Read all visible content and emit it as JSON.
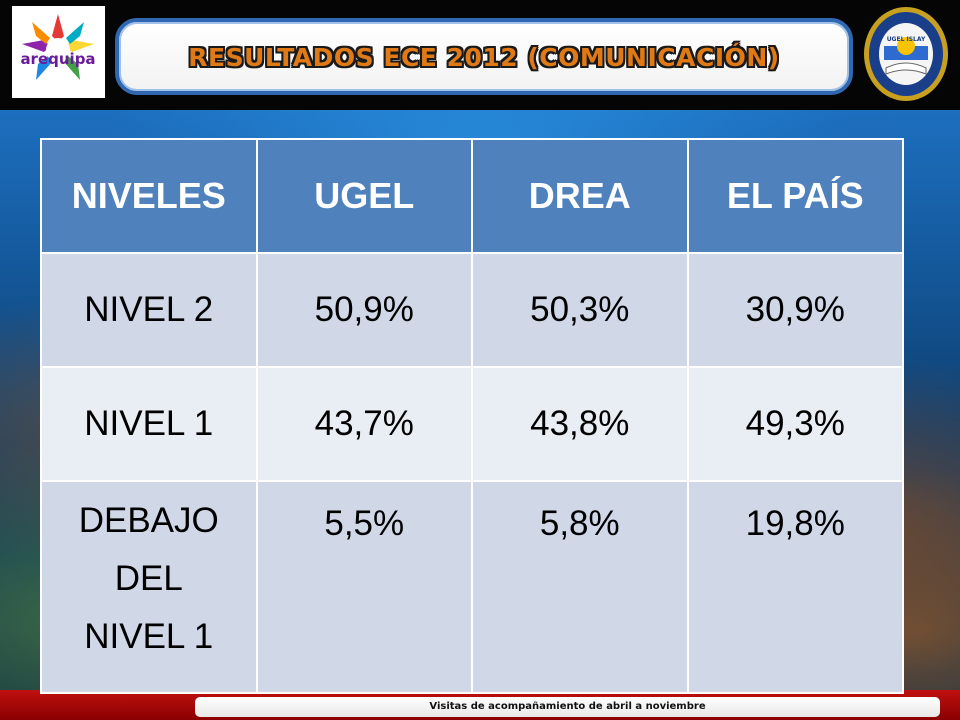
{
  "header": {
    "title": "RESULTADOS ECE 2012 (COMUNICACIÓN)",
    "left_logo_text": "arequipa",
    "right_seal_text": "UGEL ISLAY"
  },
  "table": {
    "columns": [
      "NIVELES",
      "UGEL",
      "DREA",
      "EL PAÍS"
    ],
    "rows": [
      {
        "label": "NIVEL 2",
        "values": [
          "50,9%",
          "50,3%",
          "30,9%"
        ]
      },
      {
        "label": "NIVEL 1",
        "values": [
          "43,7%",
          "43,8%",
          "49,3%"
        ]
      },
      {
        "label_lines": [
          "DEBAJO",
          "DEL",
          "NIVEL 1"
        ],
        "values": [
          "5,5%",
          "5,8%",
          "19,8%"
        ]
      }
    ]
  },
  "footer": {
    "text": "Visitas de acompañamiento de abril a noviembre"
  },
  "colors": {
    "header_cell": "#4f81bd",
    "row_dark": "#d0d8e8",
    "row_light": "#e9edf4",
    "title_text": "#e07a16",
    "title_border": "#2f68b0",
    "footer_band": "#c01010"
  }
}
